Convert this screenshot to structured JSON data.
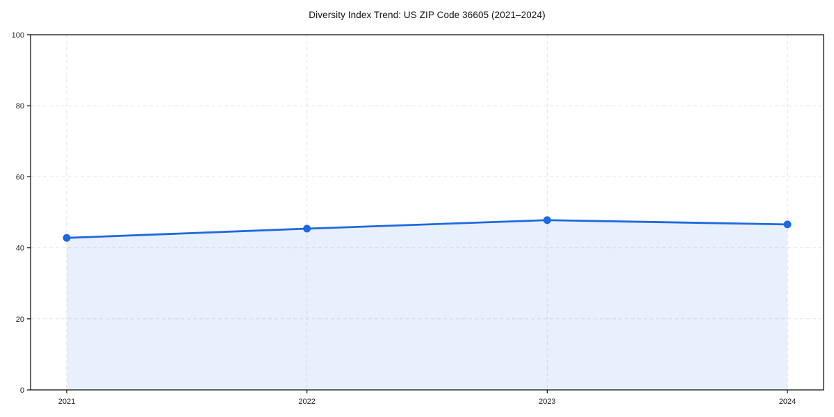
{
  "title": "Diversity Index Trend: US ZIP Code 36605 (2021–2024)",
  "chart_data": {
    "type": "line",
    "title": "Diversity Index Trend: US ZIP Code 36605 (2021–2024)",
    "series": [
      {
        "name": "Diversity Index",
        "x": [
          "2021",
          "2022",
          "2023",
          "2024"
        ],
        "values": [
          42.8,
          45.4,
          47.8,
          46.6
        ]
      }
    ],
    "categories": [
      "2021",
      "2022",
      "2023",
      "2024"
    ],
    "xlabel": "",
    "ylabel": "",
    "ylim": [
      0,
      100
    ],
    "yticks": [
      0,
      20,
      40,
      60,
      80,
      100
    ],
    "xticks": [
      "2021",
      "2022",
      "2023",
      "2024"
    ],
    "grid": true,
    "grid_style": "dashed",
    "legend": false,
    "marker": "circle",
    "area_fill": true,
    "colors": {
      "line": "#1e69e1",
      "marker": "#1e69e1",
      "fill": "rgba(30, 105, 225, 0.10)",
      "grid": "#e2e2e2",
      "axis": "#000000",
      "text": "#1a1a1a",
      "background": "#ffffff"
    }
  }
}
